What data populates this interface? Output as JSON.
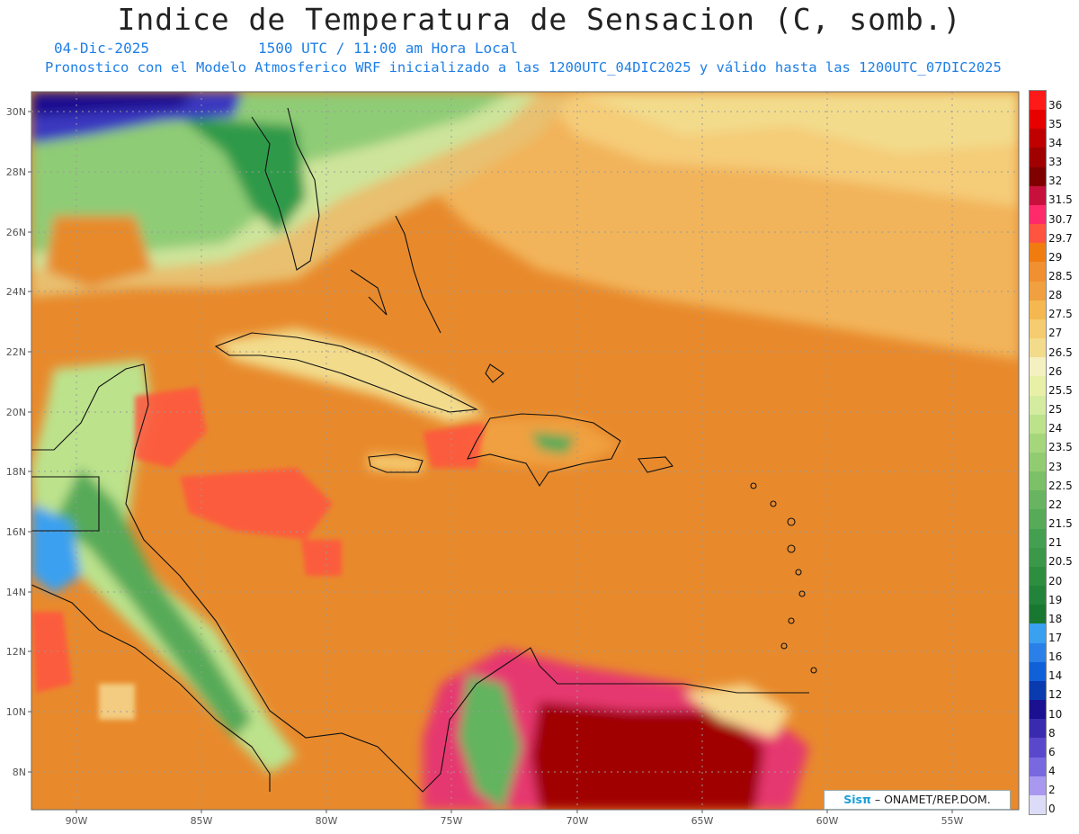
{
  "title": "Indice de Temperatura de Sensacion (C, somb.)",
  "date": "04-Dic-2025",
  "time": "1500 UTC / 11:00 am Hora Local",
  "model_line": "Pronostico con el Modelo Atmosferico WRF inicializado a las 1200UTC_04DIC2025 y válido hasta las  1200UTC_07DIC2025",
  "lat_labels": [
    "30N",
    "28N",
    "26N",
    "24N",
    "22N",
    "20N",
    "18N",
    "16N",
    "14N",
    "12N",
    "10N",
    "8N"
  ],
  "lon_labels": [
    "90W",
    "85W",
    "80W",
    "75W",
    "70W",
    "65W",
    "60W",
    "55W"
  ],
  "colorbar": {
    "labels": [
      "36",
      "35",
      "34",
      "33",
      "32",
      "31.5",
      "30.7",
      "29.7",
      "29",
      "28.5",
      "28",
      "27.5",
      "27",
      "26.5",
      "26",
      "25.5",
      "25",
      "24",
      "23.5",
      "23",
      "22.5",
      "22",
      "21.5",
      "21",
      "20.5",
      "20",
      "19",
      "18",
      "17",
      "16",
      "14",
      "12",
      "10",
      "8",
      "6",
      "4",
      "2",
      "0"
    ],
    "colors": [
      "#ff1a1a",
      "#e60000",
      "#c00000",
      "#a00000",
      "#800000",
      "#c8103c",
      "#ff2a6a",
      "#ff5540",
      "#f07c10",
      "#f09030",
      "#f0a040",
      "#f5b850",
      "#f5cc70",
      "#f2dc8c",
      "#f5f0c0",
      "#e8f0a8",
      "#d4eca0",
      "#bce28c",
      "#a6d67c",
      "#92cc72",
      "#7cc068",
      "#68b460",
      "#56aa58",
      "#44a050",
      "#3a9848",
      "#2e8e40",
      "#22843a",
      "#187832",
      "#3aa0f0",
      "#2a80e8",
      "#1060d8",
      "#0a3ab0",
      "#1a1090",
      "#3a2ab0",
      "#5a48cc",
      "#7a68e0",
      "#a898f0",
      "#dcdcf8"
    ]
  },
  "credit": {
    "sis": "Sisπ",
    "text": "– ONAMET/REP.DOM."
  }
}
